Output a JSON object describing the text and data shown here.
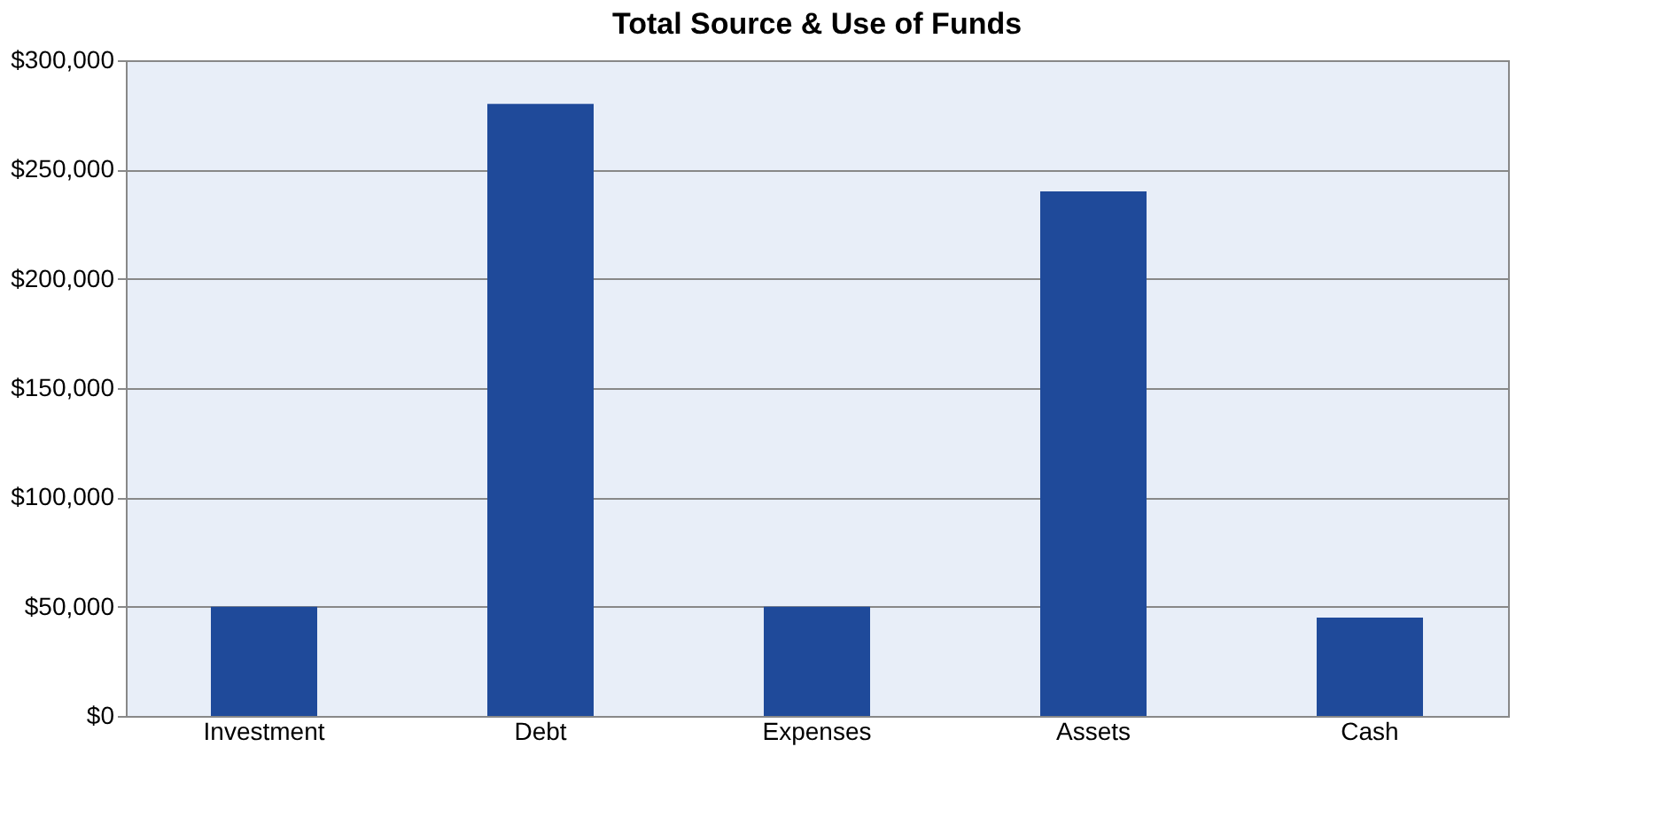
{
  "chart_data": {
    "type": "bar",
    "title": "Total Source & Use of Funds",
    "categories": [
      "Investment",
      "Debt",
      "Expenses",
      "Assets",
      "Cash"
    ],
    "values": [
      50000,
      280000,
      50000,
      240000,
      45000
    ],
    "color": "#1f4a9a",
    "ylim": [
      0,
      300000
    ],
    "yticks": [
      {
        "value": 0,
        "label": "$0"
      },
      {
        "value": 50000,
        "label": "$50,000"
      },
      {
        "value": 100000,
        "label": "$100,000"
      },
      {
        "value": 150000,
        "label": "$150,000"
      },
      {
        "value": 200000,
        "label": "$200,000"
      },
      {
        "value": 250000,
        "label": "$250,000"
      },
      {
        "value": 300000,
        "label": "$300,000"
      }
    ],
    "grid": "y"
  }
}
